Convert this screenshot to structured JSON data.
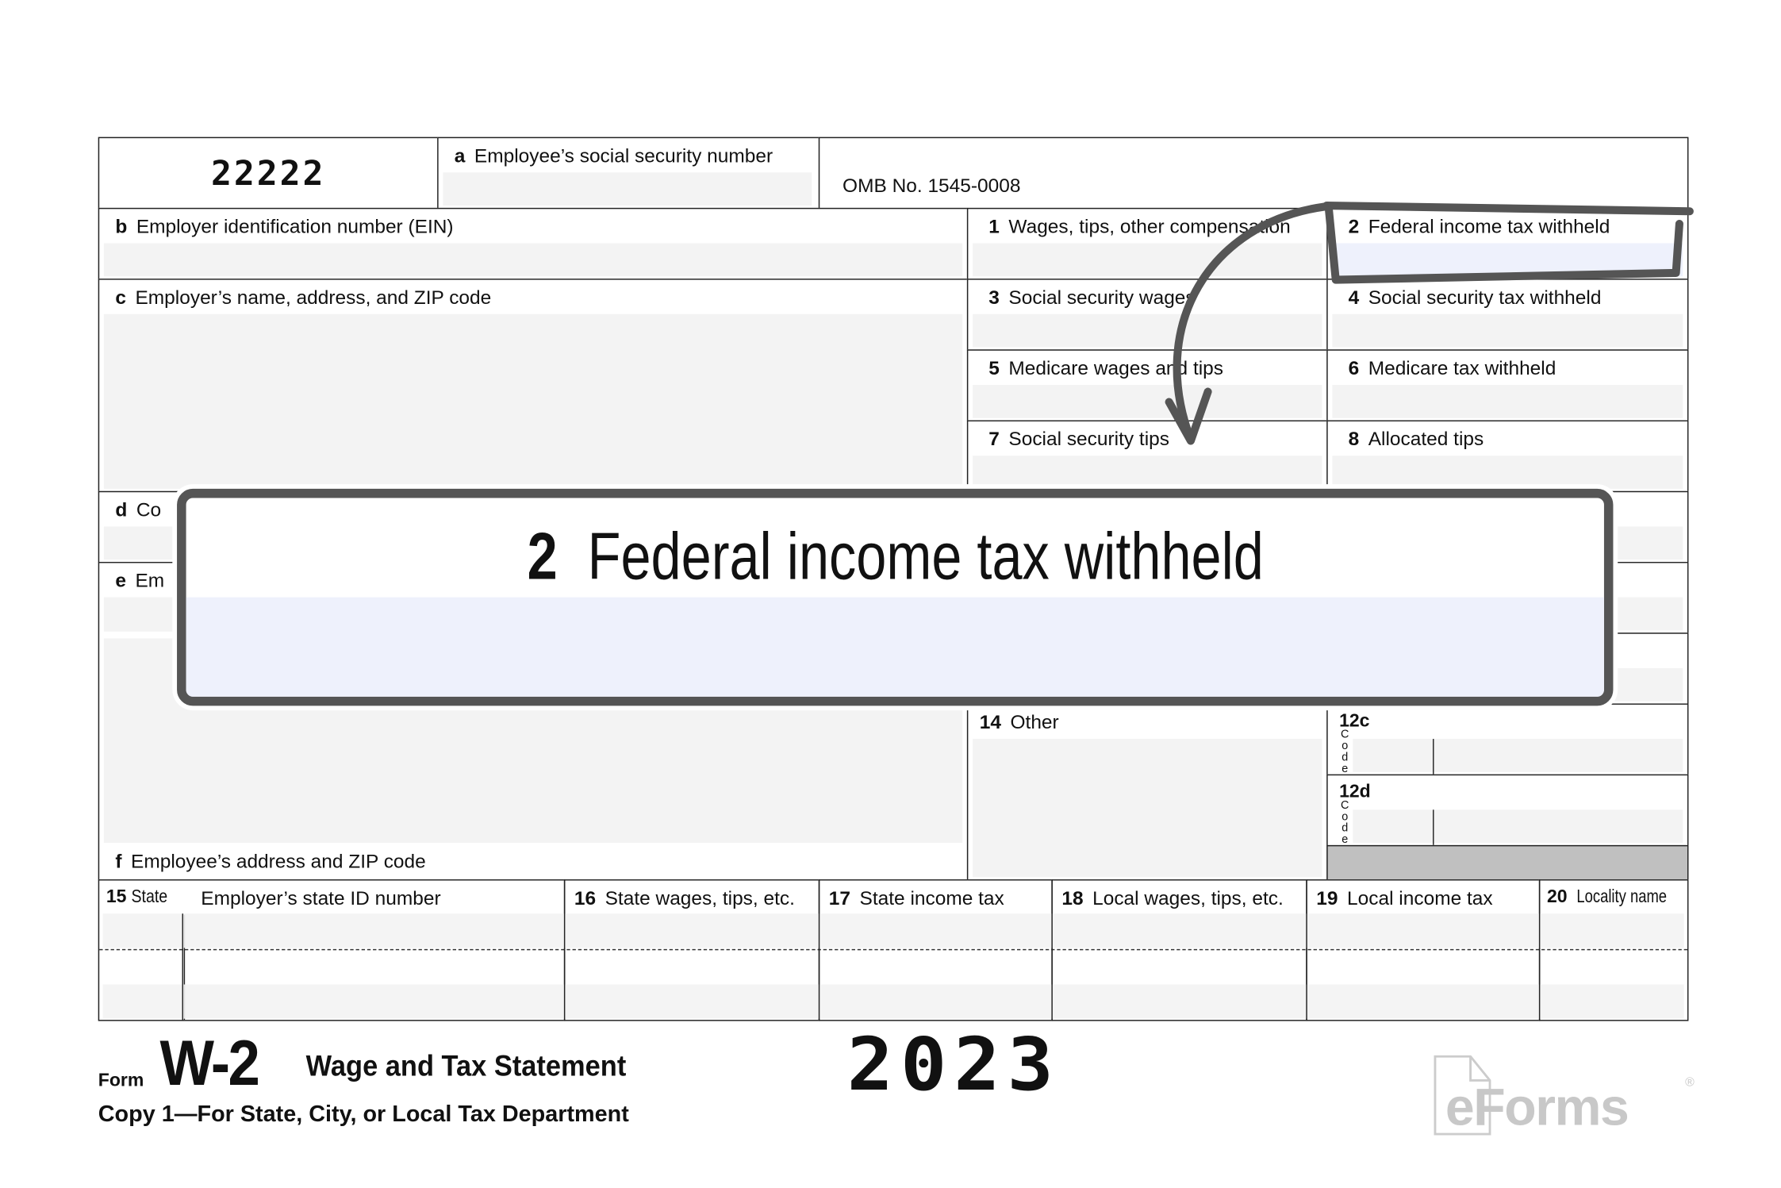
{
  "form": {
    "control_code": "22222",
    "box_a": {
      "letter": "a",
      "label": "Employee’s social security number"
    },
    "omb": "OMB No. 1545-0008",
    "box_b": {
      "letter": "b",
      "label": "Employer identification number (EIN)"
    },
    "box_c": {
      "letter": "c",
      "label": "Employer’s name, address, and ZIP code"
    },
    "box_d": {
      "letter": "d",
      "label": "Co"
    },
    "box_e": {
      "letter": "e",
      "label": "Em"
    },
    "box_f": {
      "letter": "f",
      "label": "Employee’s address and ZIP code"
    },
    "boxes": [
      {
        "num": "1",
        "label": "Wages, tips, other compensation"
      },
      {
        "num": "2",
        "label": "Federal income tax withheld"
      },
      {
        "num": "3",
        "label": "Social security wages"
      },
      {
        "num": "4",
        "label": "Social security tax withheld"
      },
      {
        "num": "5",
        "label": "Medicare wages and tips"
      },
      {
        "num": "6",
        "label": "Medicare tax withheld"
      },
      {
        "num": "7",
        "label": "Social security tips"
      },
      {
        "num": "8",
        "label": "Allocated tips"
      }
    ],
    "box_14": {
      "num": "14",
      "label": "Other"
    },
    "box_12c": {
      "num": "12c",
      "code": "Code"
    },
    "box_12d": {
      "num": "12d",
      "code": "Code"
    },
    "state_row": [
      {
        "num": "15",
        "label": "State"
      },
      {
        "num": "",
        "label": "Employer’s state ID number"
      },
      {
        "num": "16",
        "label": "State wages, tips, etc."
      },
      {
        "num": "17",
        "label": "State income tax"
      },
      {
        "num": "18",
        "label": "Local wages, tips, etc."
      },
      {
        "num": "19",
        "label": "Local income tax"
      },
      {
        "num": "20",
        "label": "Locality name"
      }
    ]
  },
  "footer": {
    "form_word": "Form",
    "form_name": "W-2",
    "form_title": "Wage and Tax Statement",
    "year": "2023",
    "copy": "Copy 1—For State, City, or Local Tax Department",
    "logo": "eForms",
    "logo_mark": "®"
  },
  "callout": {
    "num": "2",
    "label": "Federal income tax withheld"
  },
  "colors": {
    "highlight_fill": "#eef1fc",
    "callout_border": "#555555",
    "cell_fill": "#f3f3f3",
    "shaded": "#c0c0c0"
  }
}
